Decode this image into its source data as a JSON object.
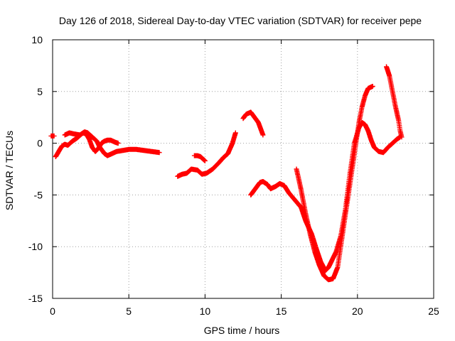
{
  "chart_data": {
    "type": "scatter",
    "title": "Day 126 of 2018, Sidereal Day-to-day VTEC variation (SDTVAR) for receiver pepe",
    "xlabel": "GPS time / hours",
    "ylabel": "SDTVAR / TECUs",
    "xlim": [
      0,
      25
    ],
    "ylim": [
      -15,
      10
    ],
    "x_ticks": [
      0,
      5,
      10,
      15,
      20,
      25
    ],
    "y_ticks": [
      10,
      5,
      0,
      -5,
      -10,
      -15
    ],
    "grid": true,
    "legend": "none",
    "marker": "plus",
    "color": "#ff0000",
    "series": [
      {
        "x": [
          -0.1,
          0.1
        ],
        "y": [
          0.7,
          0.7
        ]
      },
      {
        "x": [
          0.2,
          0.4,
          0.6,
          0.8,
          1.0,
          1.3,
          1.6,
          1.9,
          2.0,
          2.2,
          2.4,
          2.5,
          2.6,
          2.8,
          3.0,
          3.2,
          3.4,
          3.6,
          3.8,
          4.1,
          4.3
        ],
        "y": [
          -1.3,
          -0.8,
          -0.3,
          -0.1,
          -0.2,
          0.2,
          0.5,
          0.9,
          1.0,
          0.9,
          0.4,
          0.0,
          -0.4,
          -0.8,
          -0.5,
          0.0,
          0.2,
          0.3,
          0.3,
          0.1,
          0.0
        ]
      },
      {
        "x": [
          0.8,
          1.1,
          1.4,
          1.8,
          2.1,
          2.3,
          2.6,
          2.9,
          3.1,
          3.4,
          3.6,
          3.9,
          4.2,
          4.6,
          5.0,
          5.5,
          6.0,
          6.5,
          7.0
        ],
        "y": [
          0.8,
          1.0,
          0.9,
          0.8,
          1.1,
          1.0,
          0.6,
          0.2,
          -0.4,
          -1.0,
          -1.2,
          -1.0,
          -0.8,
          -0.7,
          -0.6,
          -0.6,
          -0.7,
          -0.8,
          -0.9
        ]
      },
      {
        "x": [
          8.2,
          8.5,
          8.8,
          9.1,
          9.5,
          9.8,
          10.1,
          10.5,
          10.9,
          11.2,
          11.5,
          11.8,
          12.0
        ],
        "y": [
          -3.2,
          -3.0,
          -2.9,
          -2.5,
          -2.6,
          -3.0,
          -2.9,
          -2.5,
          -1.9,
          -1.4,
          -1.0,
          0.0,
          1.0
        ]
      },
      {
        "x": [
          9.3,
          9.5,
          9.7,
          10.0
        ],
        "y": [
          -1.2,
          -1.2,
          -1.3,
          -1.7
        ]
      },
      {
        "x": [
          12.5,
          12.7,
          13.0,
          13.2,
          13.5,
          13.8
        ],
        "y": [
          2.4,
          2.8,
          3.0,
          2.6,
          2.0,
          0.8
        ]
      },
      {
        "x": [
          13.0,
          13.3,
          13.6,
          13.8,
          14.1,
          14.3,
          14.6,
          14.9,
          15.2,
          15.5,
          15.9,
          16.3,
          16.6,
          17.0,
          17.3,
          17.6,
          17.9,
          18.1,
          18.3,
          18.6,
          18.9,
          19.2,
          19.5,
          19.8,
          20.1,
          20.3,
          20.5,
          20.7,
          20.9,
          21.1,
          21.4,
          21.7,
          22.0,
          22.3,
          22.6,
          22.8
        ],
        "y": [
          -5.0,
          -4.4,
          -3.8,
          -3.7,
          -4.0,
          -4.4,
          -4.2,
          -3.9,
          -4.1,
          -4.8,
          -5.5,
          -6.2,
          -7.5,
          -8.8,
          -10.2,
          -11.5,
          -12.3,
          -12.0,
          -11.4,
          -10.5,
          -9.0,
          -6.5,
          -3.0,
          0.0,
          1.5,
          2.0,
          1.8,
          1.2,
          0.3,
          -0.4,
          -0.8,
          -0.9,
          -0.4,
          0.0,
          0.4,
          0.6
        ]
      },
      {
        "x": [
          16.0,
          16.3,
          16.6,
          16.9,
          17.2,
          17.5,
          17.8,
          18.1,
          18.4,
          18.7,
          18.9,
          19.1,
          19.3,
          19.5,
          19.7,
          19.9,
          20.1,
          20.3,
          20.5,
          20.7,
          21.0
        ],
        "y": [
          -2.5,
          -4.5,
          -6.8,
          -8.8,
          -10.5,
          -11.8,
          -12.8,
          -13.2,
          -13.1,
          -12.0,
          -10.0,
          -8.0,
          -6.0,
          -4.0,
          -2.0,
          0.0,
          2.0,
          3.5,
          4.6,
          5.3,
          5.5
        ]
      },
      {
        "x": [
          21.9,
          22.1,
          22.3,
          22.5,
          22.7,
          22.8,
          22.9
        ],
        "y": [
          7.4,
          6.5,
          5.0,
          3.5,
          2.2,
          1.2,
          0.6
        ]
      }
    ]
  }
}
